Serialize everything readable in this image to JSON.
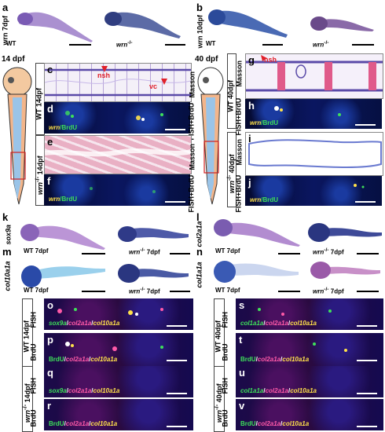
{
  "panels": {
    "a": {
      "letter": "a",
      "side": "wrn 7dpf",
      "left": "WT",
      "right": "wrn",
      "right_sup": "-/-"
    },
    "b": {
      "letter": "b",
      "side": "wrn 10dpf",
      "left": "WT",
      "right": "wrn",
      "right_sup": "-/-"
    },
    "c": {
      "letter": "c",
      "stage": "14 dpf",
      "label1": "nsh",
      "label2": "vc"
    },
    "d": {
      "letter": "d",
      "caption_a": "wrn",
      "caption_b": "/BrdU"
    },
    "e": {
      "letter": "e"
    },
    "f": {
      "letter": "f",
      "caption_a": "wrn",
      "caption_b": "/BrdU"
    },
    "g": {
      "letter": "g",
      "stage": "40 dpf",
      "label1": "nsh"
    },
    "h": {
      "letter": "h",
      "caption_a": "wrn",
      "caption_b": "/BrdU"
    },
    "i": {
      "letter": "i"
    },
    "j": {
      "letter": "j",
      "caption_a": "wrn",
      "caption_b": "/BrdU"
    },
    "k": {
      "letter": "k",
      "gene": "sox9a",
      "left": "WT 7dpf",
      "right": "wrn",
      "right_sup": "-/-",
      "right_tail": " 7dpf"
    },
    "l": {
      "letter": "l",
      "gene": "col2a1a",
      "left": "WT 7dpf",
      "right": "wrn",
      "right_sup": "-/-",
      "right_tail": " 7dpf"
    },
    "m": {
      "letter": "m",
      "gene": "col10a1a",
      "left": "WT 7dpf",
      "right": "wrn",
      "right_sup": "-/-",
      "right_tail": " 7dpf"
    },
    "n": {
      "letter": "n",
      "gene": "col1a1a",
      "left": "WT 7dpf",
      "right": "wrn",
      "right_sup": "-/-",
      "right_tail": " 7dpf"
    },
    "o": {
      "letter": "o",
      "c1": "sox9a",
      "s1": "/",
      "c2": "col2a1a",
      "s2": "/",
      "c3": "col10a1a"
    },
    "p": {
      "letter": "p",
      "c1": "BrdU",
      "s1": "/",
      "c2": "col2a1a",
      "s2": "/",
      "c3": "col10a1a"
    },
    "q": {
      "letter": "q",
      "c1": "sox9a",
      "s1": "/",
      "c2": "col2a1a",
      "s2": "/",
      "c3": "col10a1a"
    },
    "r": {
      "letter": "r",
      "c1": "BrdU",
      "s1": "/",
      "c2": "col2a1a",
      "s2": "/",
      "c3": "col10a1a"
    },
    "s": {
      "letter": "s",
      "c1": "col1a1a",
      "s1": "/",
      "c2": "col2a1a",
      "s2": "/",
      "c3": "col10a1a"
    },
    "t": {
      "letter": "t",
      "c1": "BrdU",
      "s1": "/",
      "c2": "col2a1a",
      "s2": "/",
      "c3": "col10a1a"
    },
    "u": {
      "letter": "u",
      "c1": "col1a1a",
      "s1": "/",
      "c2": "col2a1a",
      "s2": "/",
      "c3": "col10a1a"
    },
    "v": {
      "letter": "v",
      "c1": "BrdU",
      "s1": "/",
      "c2": "col2a1a",
      "s2": "/",
      "c3": "col10a1a"
    }
  },
  "row_labels": {
    "wt14": "WT 14dpf",
    "mut14": "wrn",
    "mut14_sup": "-/-",
    "mut14_tail": " 14dpf",
    "wt40": "WT 40dpf",
    "mut40": "wrn",
    "mut40_sup": "-/-",
    "mut40_tail": " 40dpf",
    "masson": "Masson",
    "fish_brdu": "FISH+BrdU",
    "fish": "FISH",
    "brdu": "BrdU"
  },
  "colors": {
    "wrn": "#ffe14a",
    "brdu": "#3ee05a",
    "col2a1a": "#ff5aa8",
    "col10a1a": "#ffe14a",
    "sox9a": "#3ee05a",
    "col1a1a": "#3ee05a",
    "arrow": "#e0202a"
  }
}
